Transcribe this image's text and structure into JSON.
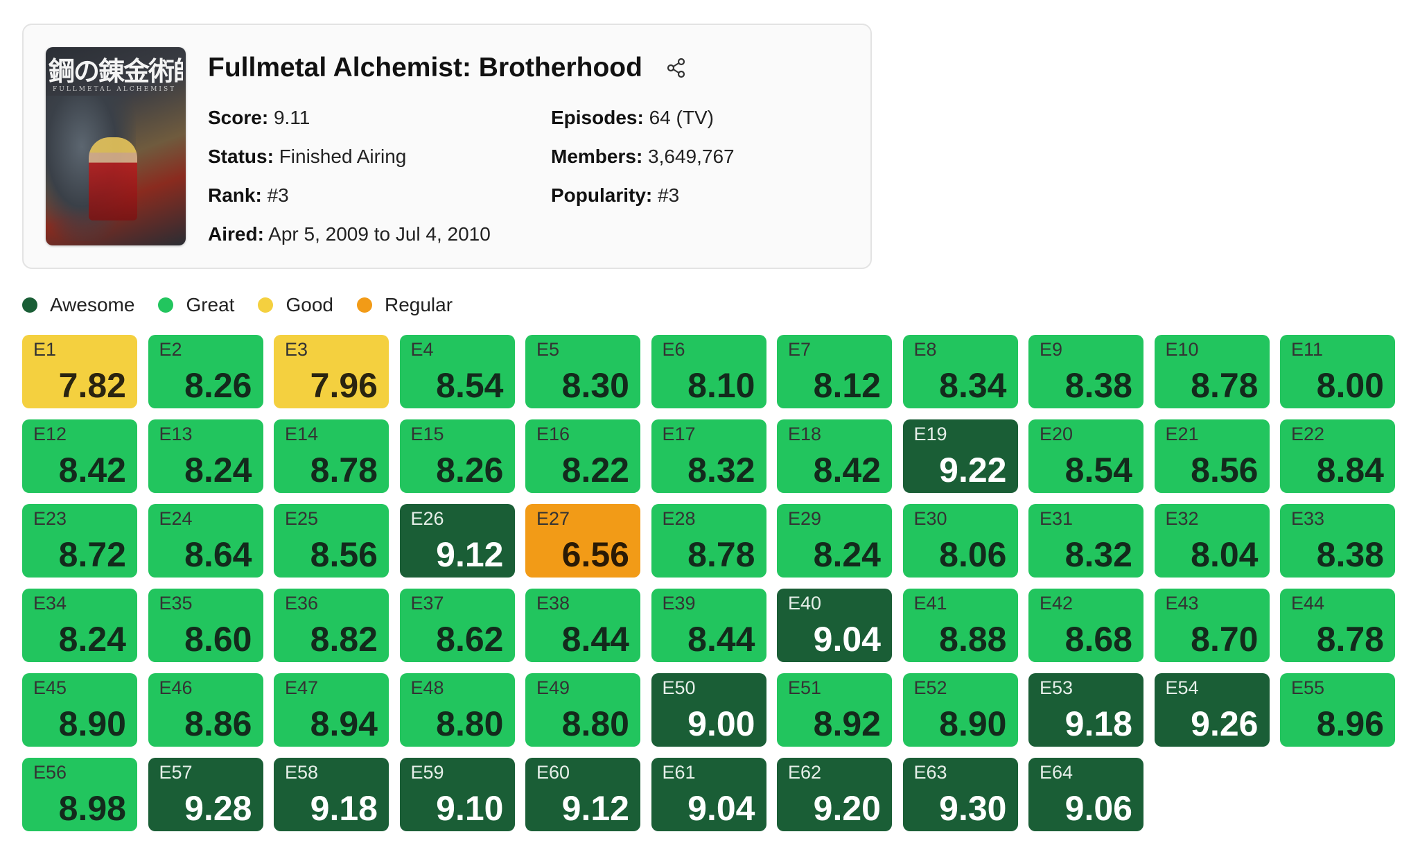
{
  "anime": {
    "title": "Fullmetal Alchemist: Brotherhood",
    "poster_text": "鋼の錬金術師",
    "poster_subtext": "FULLMETAL ALCHEMIST",
    "share_icon": "share-icon",
    "fields": {
      "score": {
        "label": "Score:",
        "value": "9.11"
      },
      "status": {
        "label": "Status:",
        "value": "Finished Airing"
      },
      "rank": {
        "label": "Rank:",
        "value": "#3"
      },
      "aired": {
        "label": "Aired:",
        "value": "Apr 5, 2009 to Jul 4, 2010"
      },
      "episodes": {
        "label": "Episodes:",
        "value": "64 (TV)"
      },
      "members": {
        "label": "Members:",
        "value": "3,649,767"
      },
      "popularity": {
        "label": "Popularity:",
        "value": "#3"
      }
    }
  },
  "legend": [
    {
      "key": "awesome",
      "label": "Awesome",
      "color": "#1a5e36"
    },
    {
      "key": "great",
      "label": "Great",
      "color": "#22c55e"
    },
    {
      "key": "good",
      "label": "Good",
      "color": "#f4d03f"
    },
    {
      "key": "regular",
      "label": "Regular",
      "color": "#f29b17"
    }
  ],
  "episodes": [
    {
      "label": "E1",
      "score": "7.82",
      "tier": "good"
    },
    {
      "label": "E2",
      "score": "8.26",
      "tier": "great"
    },
    {
      "label": "E3",
      "score": "7.96",
      "tier": "good"
    },
    {
      "label": "E4",
      "score": "8.54",
      "tier": "great"
    },
    {
      "label": "E5",
      "score": "8.30",
      "tier": "great"
    },
    {
      "label": "E6",
      "score": "8.10",
      "tier": "great"
    },
    {
      "label": "E7",
      "score": "8.12",
      "tier": "great"
    },
    {
      "label": "E8",
      "score": "8.34",
      "tier": "great"
    },
    {
      "label": "E9",
      "score": "8.38",
      "tier": "great"
    },
    {
      "label": "E10",
      "score": "8.78",
      "tier": "great"
    },
    {
      "label": "E11",
      "score": "8.00",
      "tier": "great"
    },
    {
      "label": "E12",
      "score": "8.42",
      "tier": "great"
    },
    {
      "label": "E13",
      "score": "8.24",
      "tier": "great"
    },
    {
      "label": "E14",
      "score": "8.78",
      "tier": "great"
    },
    {
      "label": "E15",
      "score": "8.26",
      "tier": "great"
    },
    {
      "label": "E16",
      "score": "8.22",
      "tier": "great"
    },
    {
      "label": "E17",
      "score": "8.32",
      "tier": "great"
    },
    {
      "label": "E18",
      "score": "8.42",
      "tier": "great"
    },
    {
      "label": "E19",
      "score": "9.22",
      "tier": "awesome"
    },
    {
      "label": "E20",
      "score": "8.54",
      "tier": "great"
    },
    {
      "label": "E21",
      "score": "8.56",
      "tier": "great"
    },
    {
      "label": "E22",
      "score": "8.84",
      "tier": "great"
    },
    {
      "label": "E23",
      "score": "8.72",
      "tier": "great"
    },
    {
      "label": "E24",
      "score": "8.64",
      "tier": "great"
    },
    {
      "label": "E25",
      "score": "8.56",
      "tier": "great"
    },
    {
      "label": "E26",
      "score": "9.12",
      "tier": "awesome"
    },
    {
      "label": "E27",
      "score": "6.56",
      "tier": "regular"
    },
    {
      "label": "E28",
      "score": "8.78",
      "tier": "great"
    },
    {
      "label": "E29",
      "score": "8.24",
      "tier": "great"
    },
    {
      "label": "E30",
      "score": "8.06",
      "tier": "great"
    },
    {
      "label": "E31",
      "score": "8.32",
      "tier": "great"
    },
    {
      "label": "E32",
      "score": "8.04",
      "tier": "great"
    },
    {
      "label": "E33",
      "score": "8.38",
      "tier": "great"
    },
    {
      "label": "E34",
      "score": "8.24",
      "tier": "great"
    },
    {
      "label": "E35",
      "score": "8.60",
      "tier": "great"
    },
    {
      "label": "E36",
      "score": "8.82",
      "tier": "great"
    },
    {
      "label": "E37",
      "score": "8.62",
      "tier": "great"
    },
    {
      "label": "E38",
      "score": "8.44",
      "tier": "great"
    },
    {
      "label": "E39",
      "score": "8.44",
      "tier": "great"
    },
    {
      "label": "E40",
      "score": "9.04",
      "tier": "awesome"
    },
    {
      "label": "E41",
      "score": "8.88",
      "tier": "great"
    },
    {
      "label": "E42",
      "score": "8.68",
      "tier": "great"
    },
    {
      "label": "E43",
      "score": "8.70",
      "tier": "great"
    },
    {
      "label": "E44",
      "score": "8.78",
      "tier": "great"
    },
    {
      "label": "E45",
      "score": "8.90",
      "tier": "great"
    },
    {
      "label": "E46",
      "score": "8.86",
      "tier": "great"
    },
    {
      "label": "E47",
      "score": "8.94",
      "tier": "great"
    },
    {
      "label": "E48",
      "score": "8.80",
      "tier": "great"
    },
    {
      "label": "E49",
      "score": "8.80",
      "tier": "great"
    },
    {
      "label": "E50",
      "score": "9.00",
      "tier": "awesome"
    },
    {
      "label": "E51",
      "score": "8.92",
      "tier": "great"
    },
    {
      "label": "E52",
      "score": "8.90",
      "tier": "great"
    },
    {
      "label": "E53",
      "score": "9.18",
      "tier": "awesome"
    },
    {
      "label": "E54",
      "score": "9.26",
      "tier": "awesome"
    },
    {
      "label": "E55",
      "score": "8.96",
      "tier": "great"
    },
    {
      "label": "E56",
      "score": "8.98",
      "tier": "great"
    },
    {
      "label": "E57",
      "score": "9.28",
      "tier": "awesome"
    },
    {
      "label": "E58",
      "score": "9.18",
      "tier": "awesome"
    },
    {
      "label": "E59",
      "score": "9.10",
      "tier": "awesome"
    },
    {
      "label": "E60",
      "score": "9.12",
      "tier": "awesome"
    },
    {
      "label": "E61",
      "score": "9.04",
      "tier": "awesome"
    },
    {
      "label": "E62",
      "score": "9.20",
      "tier": "awesome"
    },
    {
      "label": "E63",
      "score": "9.30",
      "tier": "awesome"
    },
    {
      "label": "E64",
      "score": "9.06",
      "tier": "awesome"
    }
  ]
}
